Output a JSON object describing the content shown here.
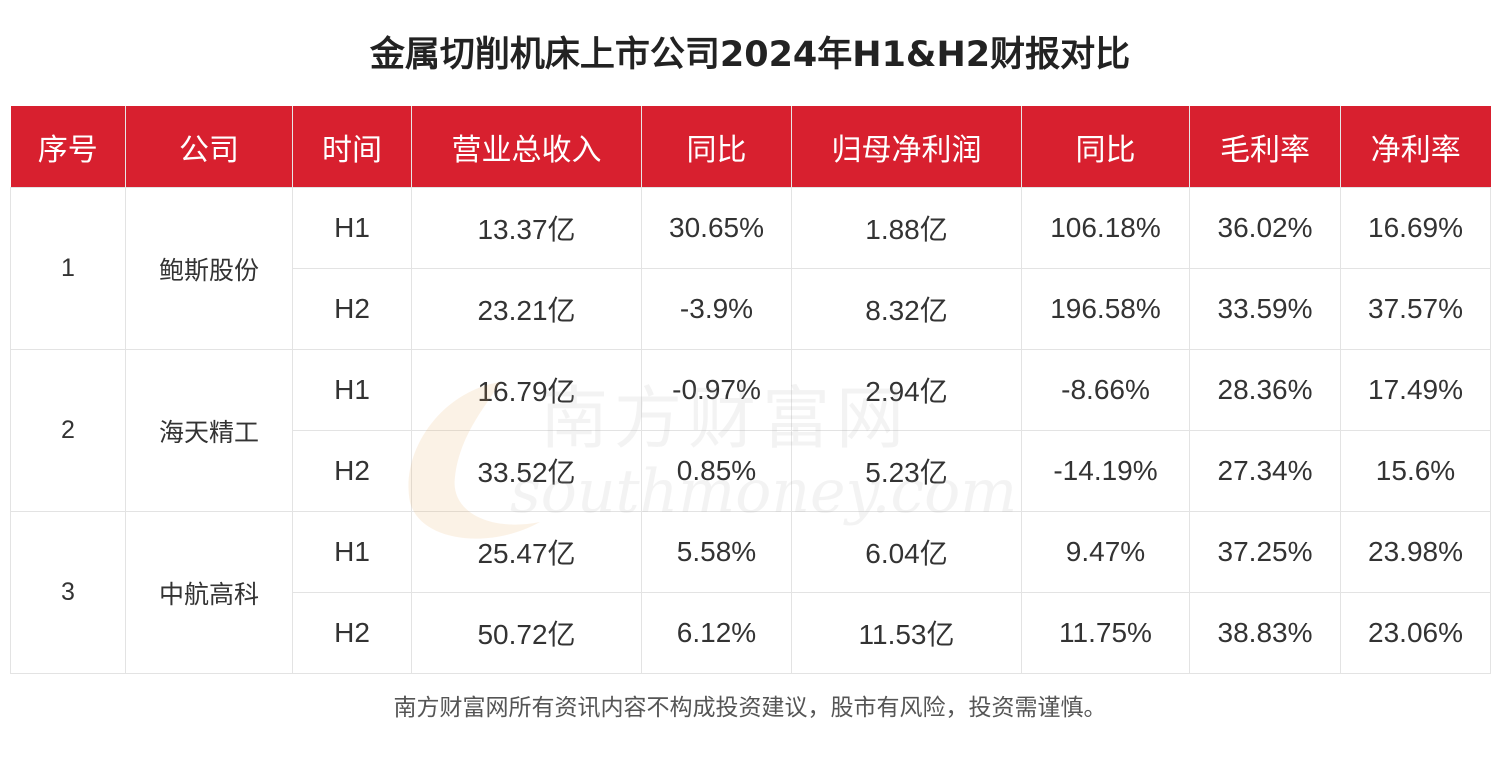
{
  "title": "金属切削机床上市公司2024年H1&H2财报对比",
  "headers": [
    "序号",
    "公司",
    "时间",
    "营业总收入",
    "同比",
    "归母净利润",
    "同比",
    "毛利率",
    "净利率"
  ],
  "companies": [
    {
      "index": "1",
      "name": "鲍斯股份",
      "rows": [
        {
          "period": "H1",
          "revenue": "13.37亿",
          "revenue_yoy": "30.65%",
          "net_profit": "1.88亿",
          "profit_yoy": "106.18%",
          "gross_margin": "36.02%",
          "net_margin": "16.69%"
        },
        {
          "period": "H2",
          "revenue": "23.21亿",
          "revenue_yoy": "-3.9%",
          "net_profit": "8.32亿",
          "profit_yoy": "196.58%",
          "gross_margin": "33.59%",
          "net_margin": "37.57%"
        }
      ]
    },
    {
      "index": "2",
      "name": "海天精工",
      "rows": [
        {
          "period": "H1",
          "revenue": "16.79亿",
          "revenue_yoy": "-0.97%",
          "net_profit": "2.94亿",
          "profit_yoy": "-8.66%",
          "gross_margin": "28.36%",
          "net_margin": "17.49%"
        },
        {
          "period": "H2",
          "revenue": "33.52亿",
          "revenue_yoy": "0.85%",
          "net_profit": "5.23亿",
          "profit_yoy": "-14.19%",
          "gross_margin": "27.34%",
          "net_margin": "15.6%"
        }
      ]
    },
    {
      "index": "3",
      "name": "中航高科",
      "rows": [
        {
          "period": "H1",
          "revenue": "25.47亿",
          "revenue_yoy": "5.58%",
          "net_profit": "6.04亿",
          "profit_yoy": "9.47%",
          "gross_margin": "37.25%",
          "net_margin": "23.98%"
        },
        {
          "period": "H2",
          "revenue": "50.72亿",
          "revenue_yoy": "6.12%",
          "net_profit": "11.53亿",
          "profit_yoy": "11.75%",
          "gross_margin": "38.83%",
          "net_margin": "23.06%"
        }
      ]
    }
  ],
  "watermark": {
    "cn": "南方财富网",
    "en": "southmoney.com"
  },
  "footer": "南方财富网所有资讯内容不构成投资建议，股市有风险，投资需谨慎。",
  "colors": {
    "header_bg": "#d8202f",
    "header_text": "#ffffff",
    "watermark": "#e8a04a"
  }
}
